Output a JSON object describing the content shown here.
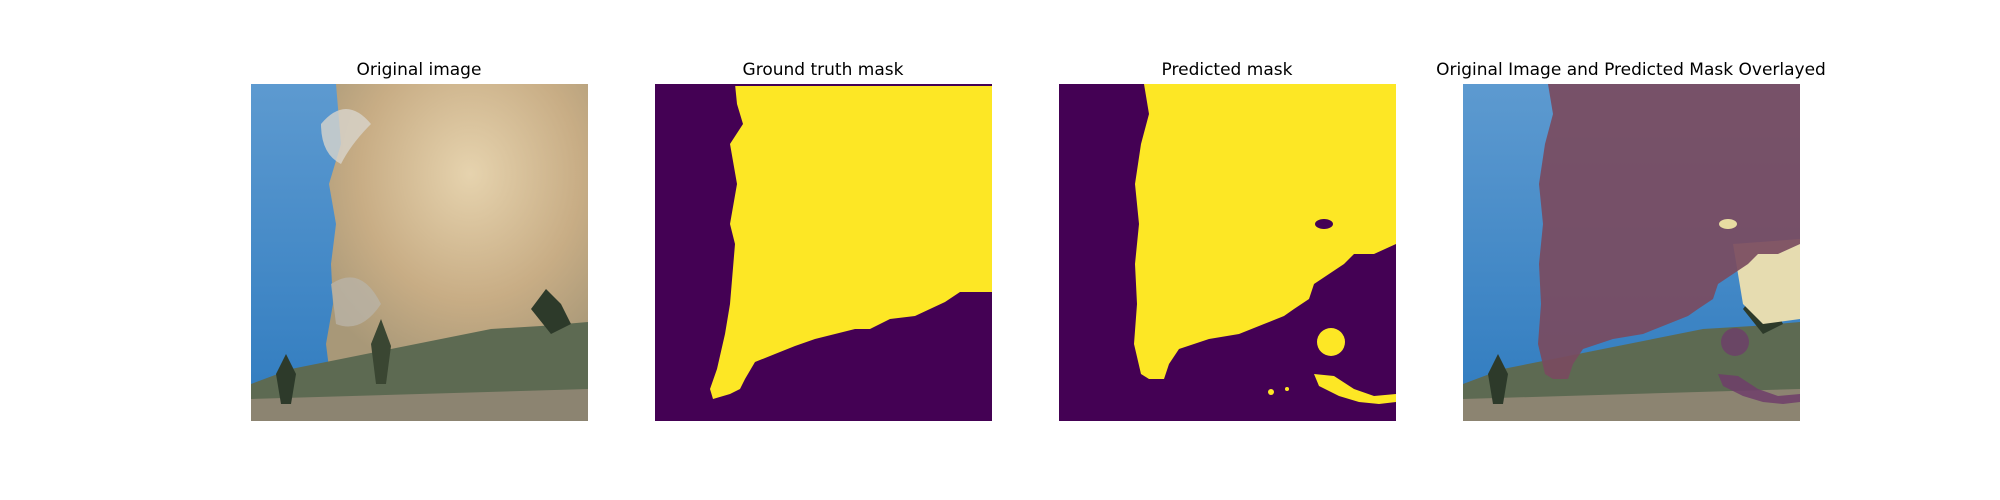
{
  "figure": {
    "panels": [
      {
        "title": "Original image"
      },
      {
        "title": "Ground truth mask"
      },
      {
        "title": "Predicted mask"
      },
      {
        "title": "Original Image and Predicted Mask Overlayed"
      }
    ]
  },
  "colors": {
    "mask_background": "#440154",
    "mask_foreground": "#fde725",
    "sky": "#3f86c2",
    "smoke": "#cdb793",
    "ground": "#7c7565"
  }
}
